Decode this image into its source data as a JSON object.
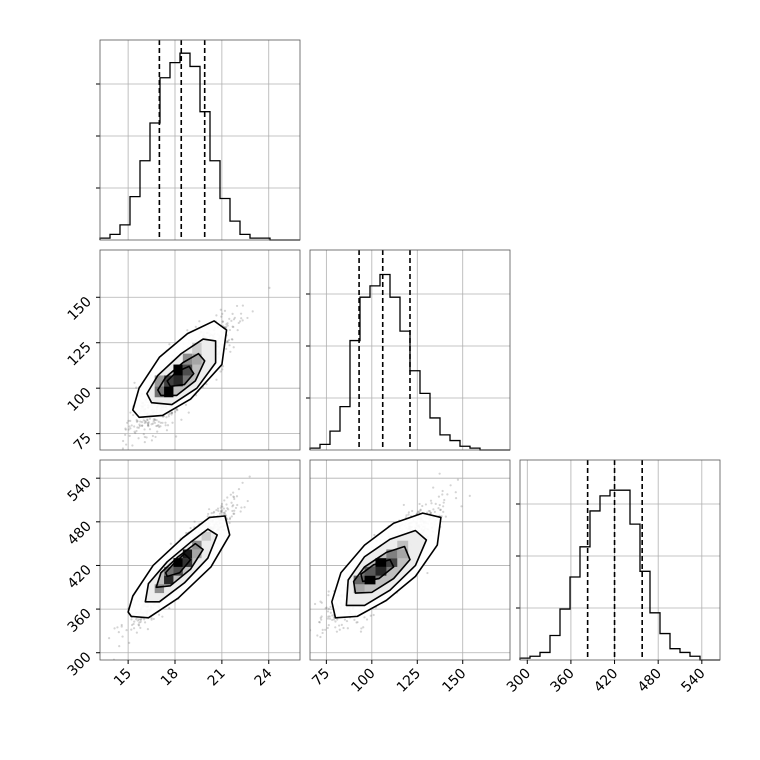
{
  "chart_data": {
    "type": "corner",
    "variables": [
      {
        "range": [
          13.2,
          26.0
        ],
        "ticks": [
          15,
          18,
          21,
          24
        ],
        "tick_labels": [
          "15",
          "18",
          "21",
          "24"
        ],
        "quantiles": [
          17.0,
          18.4,
          19.9
        ],
        "hist": {
          "bins": [
            13.2,
            13.84,
            14.48,
            15.12,
            15.76,
            16.4,
            17.04,
            17.68,
            18.32,
            18.96,
            19.6,
            20.24,
            20.88,
            21.52,
            22.16,
            22.8,
            23.44,
            24.08,
            24.72,
            25.36,
            26.0
          ],
          "counts": [
            0.01,
            0.03,
            0.08,
            0.23,
            0.42,
            0.62,
            0.86,
            0.94,
            0.99,
            0.92,
            0.68,
            0.42,
            0.22,
            0.1,
            0.03,
            0.01,
            0.01,
            0,
            0,
            0
          ]
        }
      },
      {
        "range": [
          66,
          176
        ],
        "ticks": [
          75,
          100,
          125,
          150
        ],
        "tick_labels": [
          "75",
          "100",
          "125",
          "150"
        ],
        "quantiles": [
          93,
          106,
          121
        ],
        "hist": {
          "bins": [
            66,
            71.5,
            77,
            82.5,
            88,
            93.5,
            99,
            104.5,
            110,
            115.5,
            121,
            126.5,
            132,
            137.5,
            143,
            148.5,
            154,
            159.5,
            165,
            170.5,
            176
          ],
          "counts": [
            0.01,
            0.03,
            0.1,
            0.23,
            0.58,
            0.81,
            0.87,
            0.93,
            0.81,
            0.63,
            0.42,
            0.3,
            0.17,
            0.08,
            0.05,
            0.02,
            0.01,
            0,
            0,
            0
          ]
        }
      },
      {
        "range": [
          290,
          565
        ],
        "ticks": [
          300,
          360,
          420,
          480,
          540
        ],
        "tick_labels": [
          "300",
          "360",
          "420",
          "480",
          "540"
        ],
        "quantiles": [
          383,
          420,
          458
        ],
        "hist": {
          "bins": [
            290,
            303.75,
            317.5,
            331.25,
            345,
            358.75,
            372.5,
            386.25,
            400,
            413.75,
            427.5,
            441.25,
            455,
            468.75,
            482.5,
            496.25,
            510,
            523.75,
            537.5,
            551.25,
            565
          ],
          "counts": [
            0.01,
            0.02,
            0.04,
            0.13,
            0.27,
            0.44,
            0.6,
            0.79,
            0.87,
            0.9,
            0.9,
            0.72,
            0.47,
            0.25,
            0.14,
            0.06,
            0.04,
            0.02,
            0,
            0
          ]
        }
      }
    ],
    "pairs": [
      {
        "x_var": 0,
        "y_var": 1,
        "scatter_color": "#555555",
        "density_cells": [
          {
            "x": 17.0,
            "y": 98,
            "shade": 0.55
          },
          {
            "x": 17.6,
            "y": 98,
            "shade": 1.0
          },
          {
            "x": 17.6,
            "y": 104,
            "shade": 0.75
          },
          {
            "x": 18.2,
            "y": 104,
            "shade": 0.85
          },
          {
            "x": 18.2,
            "y": 110,
            "shade": 1.0
          },
          {
            "x": 18.8,
            "y": 110,
            "shade": 0.7
          },
          {
            "x": 18.8,
            "y": 116,
            "shade": 0.45
          },
          {
            "x": 19.4,
            "y": 116,
            "shade": 0.35
          },
          {
            "x": 17.0,
            "y": 104,
            "shade": 0.4
          },
          {
            "x": 19.4,
            "y": 122,
            "shade": 0.2
          }
        ],
        "contours": [
          [
            [
              15.7,
              84
            ],
            [
              17.2,
              85
            ],
            [
              19.0,
              94
            ],
            [
              21.0,
              113
            ],
            [
              21.3,
              132
            ],
            [
              20.5,
              137
            ],
            [
              18.8,
              130
            ],
            [
              17.0,
              117
            ],
            [
              15.7,
              100
            ],
            [
              15.3,
              88
            ]
          ],
          [
            [
              16.5,
              92
            ],
            [
              17.8,
              91
            ],
            [
              19.4,
              100
            ],
            [
              20.6,
              114
            ],
            [
              20.6,
              126
            ],
            [
              19.8,
              127
            ],
            [
              18.4,
              119
            ],
            [
              16.9,
              107
            ],
            [
              16.2,
              97
            ]
          ],
          [
            [
              17.1,
              96
            ],
            [
              18.1,
              96
            ],
            [
              19.3,
              104
            ],
            [
              19.9,
              115
            ],
            [
              19.5,
              119
            ],
            [
              18.5,
              114
            ],
            [
              17.4,
              106
            ],
            [
              16.9,
              99
            ]
          ],
          [
            [
              17.7,
              101
            ],
            [
              18.6,
              102
            ],
            [
              19.2,
              108
            ],
            [
              18.9,
              112
            ],
            [
              18.1,
              109
            ],
            [
              17.5,
              104
            ]
          ]
        ]
      },
      {
        "x_var": 0,
        "y_var": 2,
        "scatter_color": "#555555",
        "density_cells": [
          {
            "x": 17.0,
            "y": 388,
            "shade": 0.45
          },
          {
            "x": 17.6,
            "y": 400,
            "shade": 0.85
          },
          {
            "x": 18.2,
            "y": 412,
            "shade": 0.7
          },
          {
            "x": 18.2,
            "y": 424,
            "shade": 1.0
          },
          {
            "x": 18.8,
            "y": 424,
            "shade": 0.8
          },
          {
            "x": 18.8,
            "y": 436,
            "shade": 0.9
          },
          {
            "x": 19.4,
            "y": 448,
            "shade": 0.45
          },
          {
            "x": 17.6,
            "y": 412,
            "shade": 0.55
          },
          {
            "x": 19.4,
            "y": 436,
            "shade": 0.35
          },
          {
            "x": 20.0,
            "y": 460,
            "shade": 0.2
          }
        ],
        "contours": [
          [
            [
              15.2,
              350
            ],
            [
              16.3,
              348
            ],
            [
              18.2,
              375
            ],
            [
              20.3,
              418
            ],
            [
              21.5,
              462
            ],
            [
              21.2,
              488
            ],
            [
              20.2,
              486
            ],
            [
              18.5,
              458
            ],
            [
              16.6,
              420
            ],
            [
              15.3,
              378
            ],
            [
              15.0,
              356
            ]
          ],
          [
            [
              16.1,
              370
            ],
            [
              17.0,
              370
            ],
            [
              18.6,
              396
            ],
            [
              20.1,
              430
            ],
            [
              20.7,
              462
            ],
            [
              20.1,
              470
            ],
            [
              19.0,
              452
            ],
            [
              17.5,
              425
            ],
            [
              16.3,
              395
            ]
          ],
          [
            [
              16.8,
              390
            ],
            [
              17.7,
              392
            ],
            [
              19.0,
              415
            ],
            [
              19.8,
              442
            ],
            [
              19.3,
              450
            ],
            [
              18.2,
              432
            ],
            [
              17.1,
              410
            ]
          ],
          [
            [
              17.5,
              405
            ],
            [
              18.3,
              410
            ],
            [
              19.0,
              428
            ],
            [
              18.6,
              436
            ],
            [
              17.9,
              422
            ],
            [
              17.4,
              410
            ]
          ]
        ]
      },
      {
        "x_var": 1,
        "y_var": 2,
        "scatter_color": "#555555",
        "density_cells": [
          {
            "x": 93,
            "y": 400,
            "shade": 0.6
          },
          {
            "x": 99,
            "y": 400,
            "shade": 1.0
          },
          {
            "x": 105,
            "y": 412,
            "shade": 0.85
          },
          {
            "x": 105,
            "y": 424,
            "shade": 1.0
          },
          {
            "x": 111,
            "y": 424,
            "shade": 0.75
          },
          {
            "x": 111,
            "y": 436,
            "shade": 0.5
          },
          {
            "x": 99,
            "y": 412,
            "shade": 0.65
          },
          {
            "x": 117,
            "y": 436,
            "shade": 0.35
          },
          {
            "x": 93,
            "y": 388,
            "shade": 0.35
          },
          {
            "x": 117,
            "y": 448,
            "shade": 0.25
          }
        ],
        "contours": [
          [
            [
              80,
              348
            ],
            [
              92,
              350
            ],
            [
              108,
              372
            ],
            [
              124,
              405
            ],
            [
              136,
              448
            ],
            [
              138,
              486
            ],
            [
              128,
              492
            ],
            [
              112,
              478
            ],
            [
              96,
              448
            ],
            [
              83,
              410
            ],
            [
              78,
              370
            ]
          ],
          [
            [
              86,
              365
            ],
            [
              96,
              365
            ],
            [
              110,
              386
            ],
            [
              124,
              420
            ],
            [
              130,
              455
            ],
            [
              124,
              468
            ],
            [
              110,
              456
            ],
            [
              96,
              432
            ],
            [
              87,
              400
            ]
          ],
          [
            [
              91,
              382
            ],
            [
              100,
              383
            ],
            [
              112,
              402
            ],
            [
              121,
              428
            ],
            [
              118,
              446
            ],
            [
              108,
              438
            ],
            [
              96,
              418
            ],
            [
              90,
              398
            ]
          ],
          [
            [
              95,
              398
            ],
            [
              104,
              402
            ],
            [
              112,
              418
            ],
            [
              110,
              428
            ],
            [
              101,
              421
            ],
            [
              94,
              408
            ]
          ]
        ]
      }
    ]
  }
}
